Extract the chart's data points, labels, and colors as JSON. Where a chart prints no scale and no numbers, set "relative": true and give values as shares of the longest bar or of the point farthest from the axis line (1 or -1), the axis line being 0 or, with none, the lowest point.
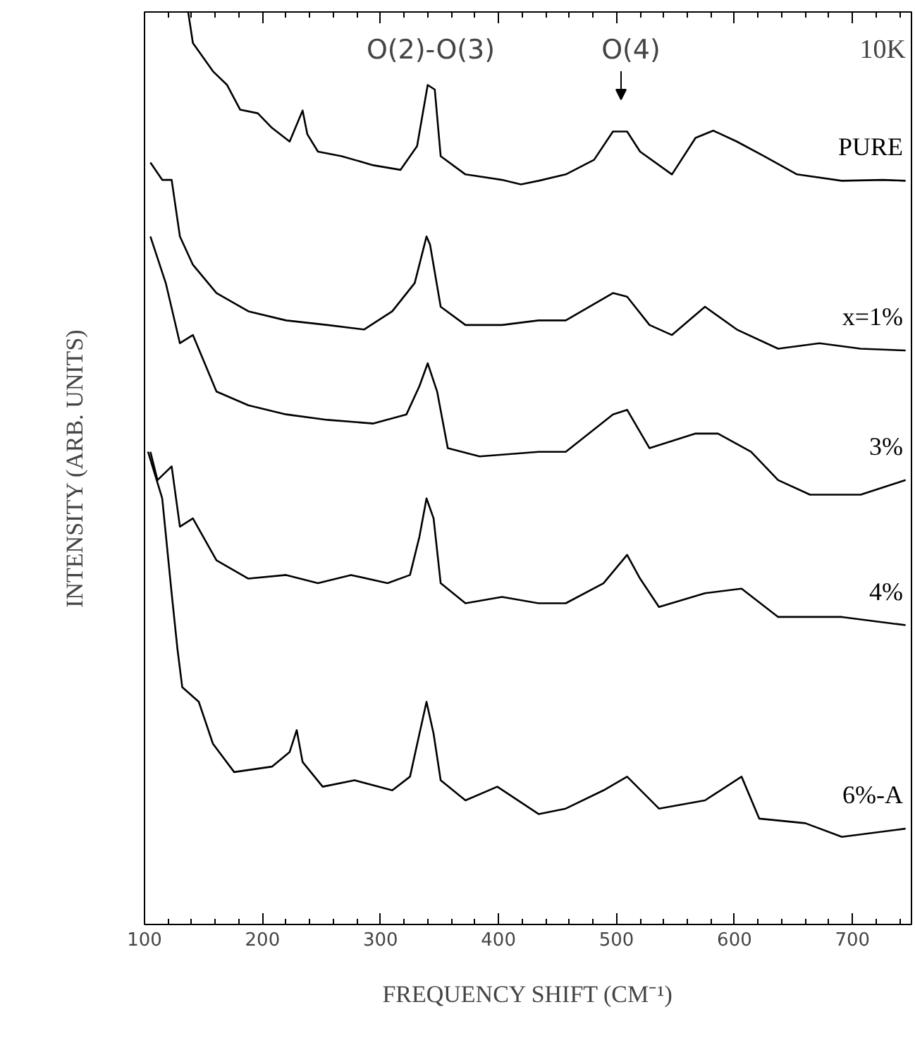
{
  "chart_data": {
    "type": "line",
    "relative": true,
    "xlabel": "FREQUENCY SHIFT (CM⁻¹)",
    "ylabel": "INTENSITY (ARB. UNITS)",
    "xlim": [
      100,
      750
    ],
    "xticks": [
      100,
      200,
      300,
      400,
      500,
      600,
      700
    ],
    "grid": false,
    "annotations": [
      "10K",
      "O(2)-O(3)",
      "O(4)"
    ],
    "series": [
      {
        "name": "PURE",
        "color": "#000000",
        "x": [
          137,
          141,
          158,
          170,
          181,
          196,
          208,
          223,
          234,
          238,
          247,
          267,
          294,
          317,
          331,
          340,
          346,
          351,
          372,
          403,
          419,
          434,
          457,
          481,
          497,
          509,
          520,
          547,
          567,
          582,
          602,
          625,
          653,
          691,
          726,
          745
        ],
        "values": [
          1.0,
          0.966,
          0.935,
          0.92,
          0.893,
          0.889,
          0.873,
          0.858,
          0.892,
          0.866,
          0.847,
          0.842,
          0.832,
          0.827,
          0.853,
          0.92,
          0.915,
          0.842,
          0.822,
          0.816,
          0.811,
          0.815,
          0.822,
          0.838,
          0.869,
          0.869,
          0.847,
          0.822,
          0.862,
          0.87,
          0.858,
          0.842,
          0.822,
          0.815,
          0.816,
          0.815
        ]
      },
      {
        "name": "x=1%",
        "color": "#000000",
        "x": [
          105,
          115,
          123,
          130,
          141,
          161,
          188,
          220,
          255,
          286,
          310,
          329,
          339,
          342,
          351,
          372,
          403,
          434,
          457,
          497,
          509,
          528,
          547,
          575,
          602,
          637,
          672,
          707,
          745
        ],
        "values": [
          0.835,
          0.816,
          0.816,
          0.754,
          0.723,
          0.692,
          0.672,
          0.662,
          0.657,
          0.652,
          0.672,
          0.703,
          0.754,
          0.745,
          0.677,
          0.657,
          0.657,
          0.662,
          0.662,
          0.692,
          0.688,
          0.657,
          0.646,
          0.677,
          0.652,
          0.631,
          0.637,
          0.631,
          0.629
        ]
      },
      {
        "name": "3%",
        "color": "#000000",
        "x": [
          105,
          118,
          130,
          141,
          161,
          188,
          220,
          255,
          294,
          322,
          333,
          340,
          348,
          357,
          384,
          434,
          457,
          497,
          509,
          528,
          567,
          586,
          614,
          637,
          664,
          707,
          745
        ],
        "values": [
          0.754,
          0.703,
          0.637,
          0.646,
          0.584,
          0.569,
          0.559,
          0.553,
          0.549,
          0.559,
          0.59,
          0.615,
          0.584,
          0.522,
          0.513,
          0.518,
          0.518,
          0.559,
          0.564,
          0.522,
          0.538,
          0.538,
          0.518,
          0.487,
          0.471,
          0.471,
          0.487
        ]
      },
      {
        "name": "4%",
        "color": "#000000",
        "x": [
          105,
          111,
          123,
          130,
          141,
          161,
          188,
          220,
          247,
          275,
          306,
          325,
          333,
          339,
          345,
          351,
          372,
          403,
          434,
          457,
          489,
          509,
          520,
          536,
          575,
          606,
          637,
          691,
          745
        ],
        "values": [
          0.518,
          0.487,
          0.502,
          0.436,
          0.445,
          0.399,
          0.379,
          0.383,
          0.374,
          0.383,
          0.374,
          0.383,
          0.425,
          0.467,
          0.445,
          0.374,
          0.352,
          0.359,
          0.352,
          0.352,
          0.374,
          0.405,
          0.379,
          0.348,
          0.363,
          0.368,
          0.337,
          0.337,
          0.328
        ]
      },
      {
        "name": "6%-A",
        "color": "#000000",
        "x": [
          103,
          115,
          123,
          128,
          132,
          146,
          158,
          176,
          208,
          223,
          229,
          234,
          251,
          278,
          310,
          325,
          333,
          339,
          345,
          351,
          372,
          399,
          434,
          457,
          489,
          509,
          536,
          575,
          606,
          621,
          660,
          691,
          745
        ],
        "values": [
          0.518,
          0.467,
          0.363,
          0.301,
          0.26,
          0.244,
          0.198,
          0.167,
          0.173,
          0.189,
          0.213,
          0.178,
          0.151,
          0.158,
          0.147,
          0.162,
          0.209,
          0.244,
          0.209,
          0.158,
          0.136,
          0.151,
          0.121,
          0.127,
          0.147,
          0.162,
          0.127,
          0.136,
          0.162,
          0.116,
          0.111,
          0.096,
          0.105
        ]
      }
    ]
  }
}
